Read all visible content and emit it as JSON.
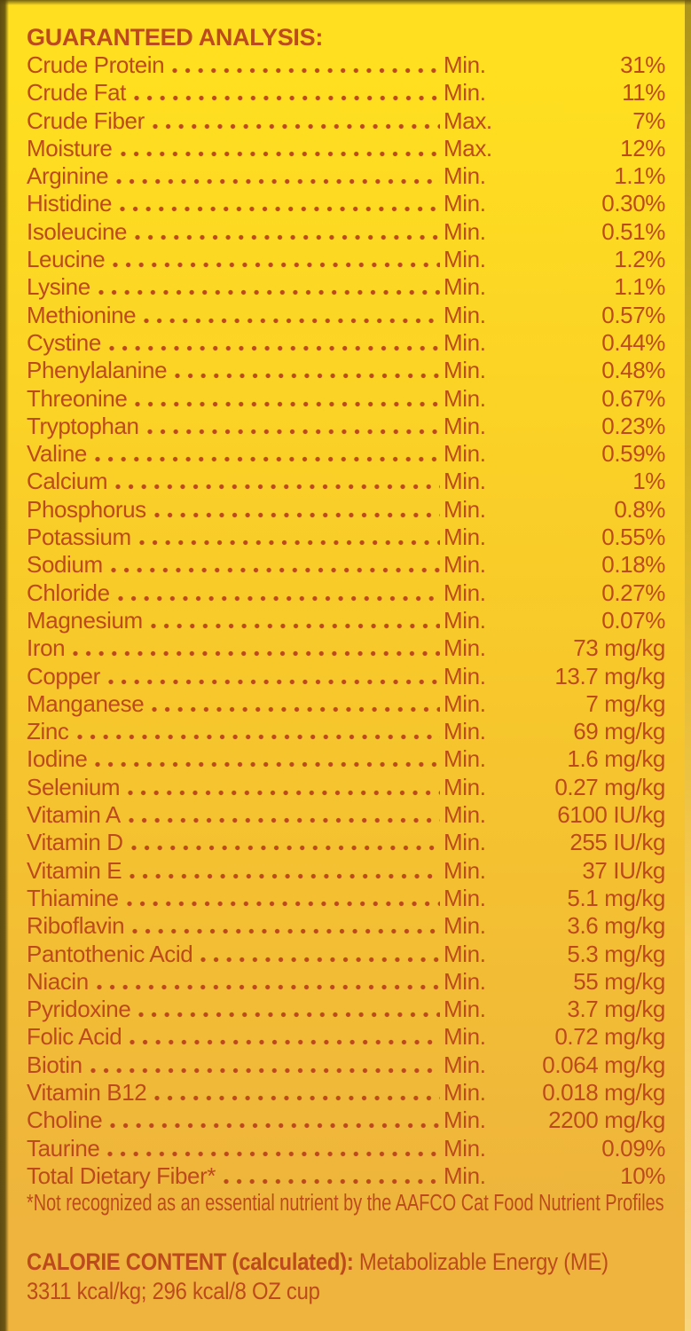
{
  "colors": {
    "ink": "#bc4a1d",
    "background_top": "#ffdf20",
    "background_middle": "#f8c92a",
    "background_bottom": "#eeb43d",
    "edge_shadow": "#605019"
  },
  "panel": {
    "title": "GUARANTEED ANALYSIS:",
    "rows": [
      {
        "name": "Crude Protein",
        "limit": "Min.",
        "value": "31%"
      },
      {
        "name": "Crude Fat",
        "limit": "Min.",
        "value": "11%"
      },
      {
        "name": "Crude Fiber",
        "limit": "Max.",
        "value": "7%"
      },
      {
        "name": "Moisture",
        "limit": "Max.",
        "value": "12%"
      },
      {
        "name": "Arginine",
        "limit": "Min.",
        "value": "1.1%"
      },
      {
        "name": "Histidine",
        "limit": "Min.",
        "value": "0.30%"
      },
      {
        "name": "Isoleucine",
        "limit": "Min.",
        "value": "0.51%"
      },
      {
        "name": "Leucine",
        "limit": "Min.",
        "value": "1.2%"
      },
      {
        "name": "Lysine",
        "limit": "Min.",
        "value": "1.1%"
      },
      {
        "name": "Methionine",
        "limit": "Min.",
        "value": "0.57%"
      },
      {
        "name": "Cystine",
        "limit": "Min.",
        "value": "0.44%"
      },
      {
        "name": "Phenylalanine",
        "limit": "Min.",
        "value": "0.48%"
      },
      {
        "name": "Threonine",
        "limit": "Min.",
        "value": "0.67%"
      },
      {
        "name": "Tryptophan",
        "limit": "Min.",
        "value": "0.23%"
      },
      {
        "name": "Valine",
        "limit": "Min.",
        "value": "0.59%"
      },
      {
        "name": "Calcium",
        "limit": "Min.",
        "value": "1%"
      },
      {
        "name": "Phosphorus",
        "limit": "Min.",
        "value": "0.8%"
      },
      {
        "name": "Potassium",
        "limit": "Min.",
        "value": "0.55%"
      },
      {
        "name": "Sodium",
        "limit": "Min.",
        "value": "0.18%"
      },
      {
        "name": "Chloride",
        "limit": "Min.",
        "value": "0.27%"
      },
      {
        "name": "Magnesium",
        "limit": "Min.",
        "value": "0.07%"
      },
      {
        "name": "Iron",
        "limit": "Min.",
        "value": "73 mg/kg"
      },
      {
        "name": "Copper",
        "limit": "Min.",
        "value": "13.7 mg/kg"
      },
      {
        "name": "Manganese",
        "limit": "Min.",
        "value": "7 mg/kg"
      },
      {
        "name": "Zinc",
        "limit": "Min.",
        "value": "69 mg/kg"
      },
      {
        "name": "Iodine",
        "limit": "Min.",
        "value": "1.6 mg/kg"
      },
      {
        "name": "Selenium",
        "limit": "Min.",
        "value": "0.27 mg/kg"
      },
      {
        "name": "Vitamin A",
        "limit": "Min.",
        "value": "6100 IU/kg"
      },
      {
        "name": "Vitamin D",
        "limit": "Min.",
        "value": "255 IU/kg"
      },
      {
        "name": "Vitamin E",
        "limit": "Min.",
        "value": "37 IU/kg"
      },
      {
        "name": "Thiamine",
        "limit": "Min.",
        "value": "5.1 mg/kg"
      },
      {
        "name": "Riboflavin",
        "limit": "Min.",
        "value": "3.6 mg/kg"
      },
      {
        "name": "Pantothenic Acid",
        "limit": "Min.",
        "value": "5.3 mg/kg"
      },
      {
        "name": "Niacin",
        "limit": "Min.",
        "value": "55 mg/kg"
      },
      {
        "name": "Pyridoxine",
        "limit": "Min.",
        "value": "3.7 mg/kg"
      },
      {
        "name": "Folic Acid",
        "limit": "Min.",
        "value": "0.72 mg/kg"
      },
      {
        "name": "Biotin",
        "limit": "Min.",
        "value": "0.064 mg/kg"
      },
      {
        "name": "Vitamin B12",
        "limit": "Min.",
        "value": "0.018 mg/kg"
      },
      {
        "name": "Choline",
        "limit": "Min.",
        "value": "2200 mg/kg"
      },
      {
        "name": "Taurine",
        "limit": "Min.",
        "value": "0.09%"
      },
      {
        "name": "Total Dietary Fiber*",
        "limit": "Min.",
        "value": "10%"
      }
    ],
    "footnote": "*Not recognized as an essential nutrient by the AAFCO Cat Food Nutrient Profiles",
    "calorie": {
      "heading": "CALORIE CONTENT (calculated):",
      "text": "Metabolizable Energy (ME)",
      "values": "3311 kcal/kg; 296 kcal/8 OZ cup"
    }
  }
}
